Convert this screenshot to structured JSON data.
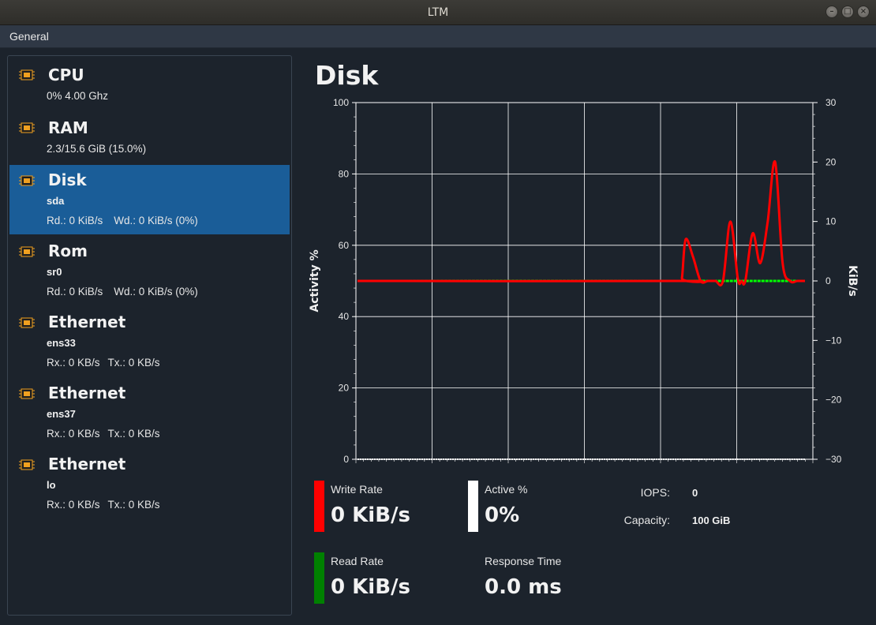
{
  "window": {
    "title": "LTM"
  },
  "menu": {
    "general": "General"
  },
  "sidebar": {
    "items": [
      {
        "title": "CPU",
        "sub": "",
        "detail1": "0%  4.00 Ghz",
        "detail2": ""
      },
      {
        "title": "RAM",
        "sub": "",
        "detail1": "2.3/15.6 GiB (15.0%)",
        "detail2": ""
      },
      {
        "title": "Disk",
        "sub": "sda",
        "detail1": "Rd.: 0 KiB/s",
        "detail2": "Wd.: 0 KiB/s (0%)"
      },
      {
        "title": "Rom",
        "sub": "sr0",
        "detail1": "Rd.: 0 KiB/s",
        "detail2": "Wd.: 0 KiB/s (0%)"
      },
      {
        "title": "Ethernet",
        "sub": "ens33",
        "detail1": "Rx.: 0 KB/s",
        "detail2": "Tx.: 0 KB/s"
      },
      {
        "title": "Ethernet",
        "sub": "ens37",
        "detail1": "Rx.: 0 KB/s",
        "detail2": "Tx.: 0 KB/s"
      },
      {
        "title": "Ethernet",
        "sub": "lo",
        "detail1": "Rx.: 0 KB/s",
        "detail2": "Tx.: 0 KB/s"
      }
    ],
    "selected_index": 2
  },
  "main": {
    "title": "Disk",
    "stats": {
      "write_rate_label": "Write Rate",
      "write_rate_value": "0 KiB/s",
      "active_label": "Active %",
      "active_value": "0%",
      "read_rate_label": "Read Rate",
      "read_rate_value": "0 KiB/s",
      "response_label": "Response Time",
      "response_value": "0.0 ms",
      "iops_label": "IOPS:",
      "iops_value": "0",
      "capacity_label": "Capacity:",
      "capacity_value": "100 GiB"
    }
  },
  "colors": {
    "write": "#ff0000",
    "active": "#ffffff",
    "read": "#008000",
    "selected": "#1a5d98",
    "chip": "#f0a020"
  },
  "icons": {
    "device": "chip-icon"
  },
  "chart_data": {
    "type": "line",
    "ylabel_left": "Activity %",
    "ylabel_right": "KiB/s",
    "ylim_left": [
      0,
      100
    ],
    "ylim_right": [
      -30,
      30
    ],
    "left_ticks": [
      "0",
      "20",
      "40",
      "60",
      "80",
      "100"
    ],
    "right_ticks": [
      "-30",
      "-20",
      "-10",
      "0",
      "10",
      "20",
      "30"
    ],
    "grid": true,
    "x": [
      0,
      4.3,
      4.35,
      4.4,
      4.5,
      4.6,
      4.7,
      4.8,
      4.9,
      5.0,
      5.1,
      5.15,
      5.2,
      5.3,
      5.4,
      5.5,
      5.6,
      5.7,
      5.8,
      5.9,
      6.0
    ],
    "series": [
      {
        "axis": "right",
        "color": "#ff0000",
        "values": [
          0,
          0,
          0.5,
          7,
          4,
          0,
          0,
          0,
          0,
          10,
          0.3,
          0,
          0,
          8,
          3,
          10,
          20,
          3,
          0,
          0,
          0
        ]
      },
      {
        "axis": "right",
        "color": "#00ff00",
        "values": [
          0,
          0,
          0,
          0,
          0,
          0,
          0,
          0,
          0,
          0,
          0,
          0,
          0,
          0,
          0,
          0,
          0,
          0,
          0,
          0,
          0
        ]
      },
      {
        "axis": "left",
        "color": "#ffffff",
        "values": [
          0,
          0,
          0,
          0,
          0,
          0,
          0,
          0,
          0,
          0,
          0,
          0,
          0,
          0,
          0,
          0,
          0,
          0,
          0,
          0,
          0
        ]
      }
    ]
  }
}
